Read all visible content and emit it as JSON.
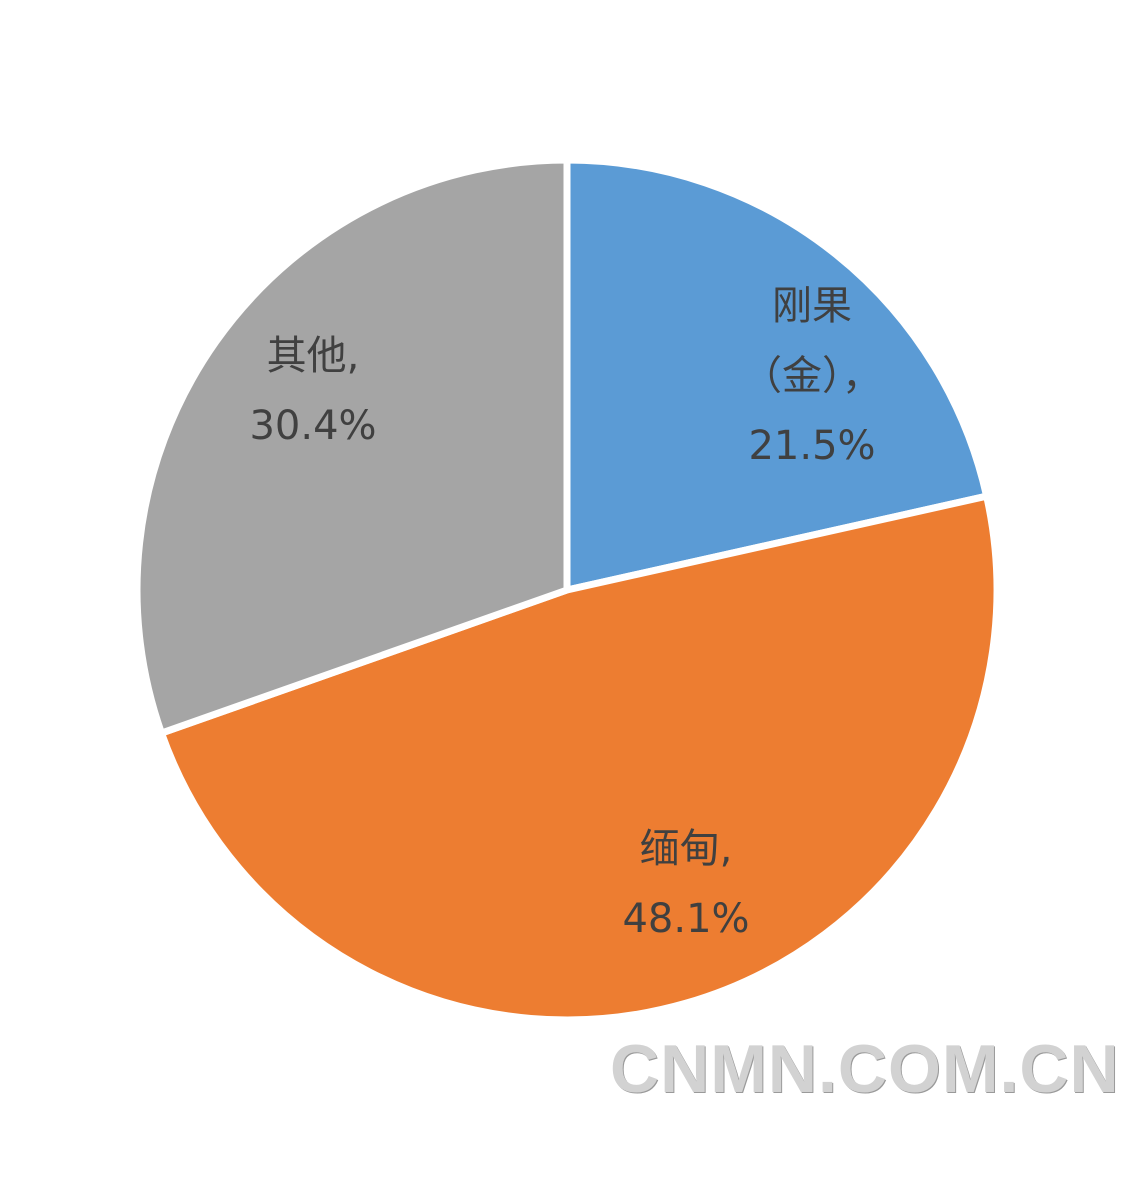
{
  "chart_data": {
    "type": "pie",
    "start_angle": "12 o'clock",
    "direction": "clockwise",
    "slices": [
      {
        "name": "刚果（金）",
        "value": 21.5,
        "color": "#5B9BD5",
        "label_lines": [
          "刚果",
          "（金），",
          "21.5%"
        ]
      },
      {
        "name": "缅甸",
        "value": 48.1,
        "color": "#ED7D31",
        "label_lines": [
          "缅甸,",
          "48.1%"
        ]
      },
      {
        "name": "其他",
        "value": 30.4,
        "color": "#A5A5A5",
        "label_lines": [
          "其他,",
          "30.4%"
        ]
      }
    ],
    "legend": "none",
    "label_color": "#404040"
  },
  "watermark": "CNMN.COM.CN"
}
